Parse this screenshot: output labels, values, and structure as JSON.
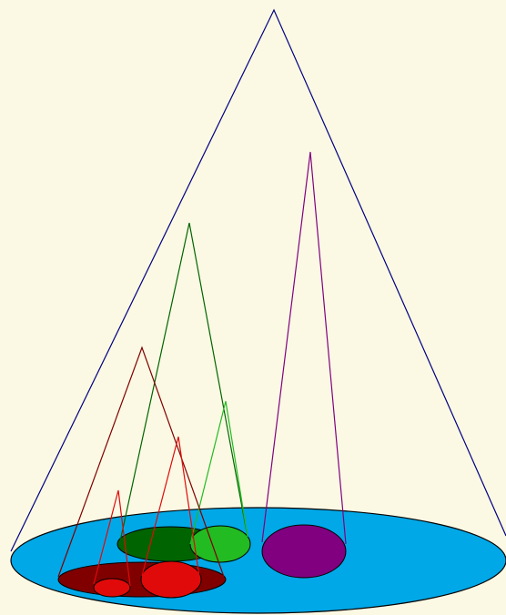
{
  "colors": {
    "background": "#fbf9e4",
    "base": "#00a8e8",
    "outline": "#000000",
    "outer_cone": "#000080",
    "dark_green": "#006400",
    "light_green": "#22bb22",
    "purple": "#800080",
    "dark_red": "#800000",
    "red": "#e00a0a"
  },
  "cones": [
    {
      "id": "outer-cone",
      "color_key": "outer_cone"
    },
    {
      "id": "purple-cone",
      "color_key": "purple"
    },
    {
      "id": "dark-green-cone",
      "color_key": "dark_green"
    },
    {
      "id": "light-green-cone",
      "color_key": "light_green"
    },
    {
      "id": "dark-red-cone",
      "color_key": "dark_red"
    },
    {
      "id": "red-cone-large",
      "color_key": "red"
    },
    {
      "id": "red-cone-small",
      "color_key": "red"
    }
  ],
  "bases": [
    {
      "id": "outer-base",
      "color_key": "base"
    },
    {
      "id": "purple-base",
      "color_key": "purple"
    },
    {
      "id": "dark-green-base",
      "color_key": "dark_green"
    },
    {
      "id": "light-green-base",
      "color_key": "light_green"
    },
    {
      "id": "dark-red-base",
      "color_key": "dark_red"
    },
    {
      "id": "red-base-large",
      "color_key": "red"
    },
    {
      "id": "red-base-small",
      "color_key": "red"
    }
  ]
}
